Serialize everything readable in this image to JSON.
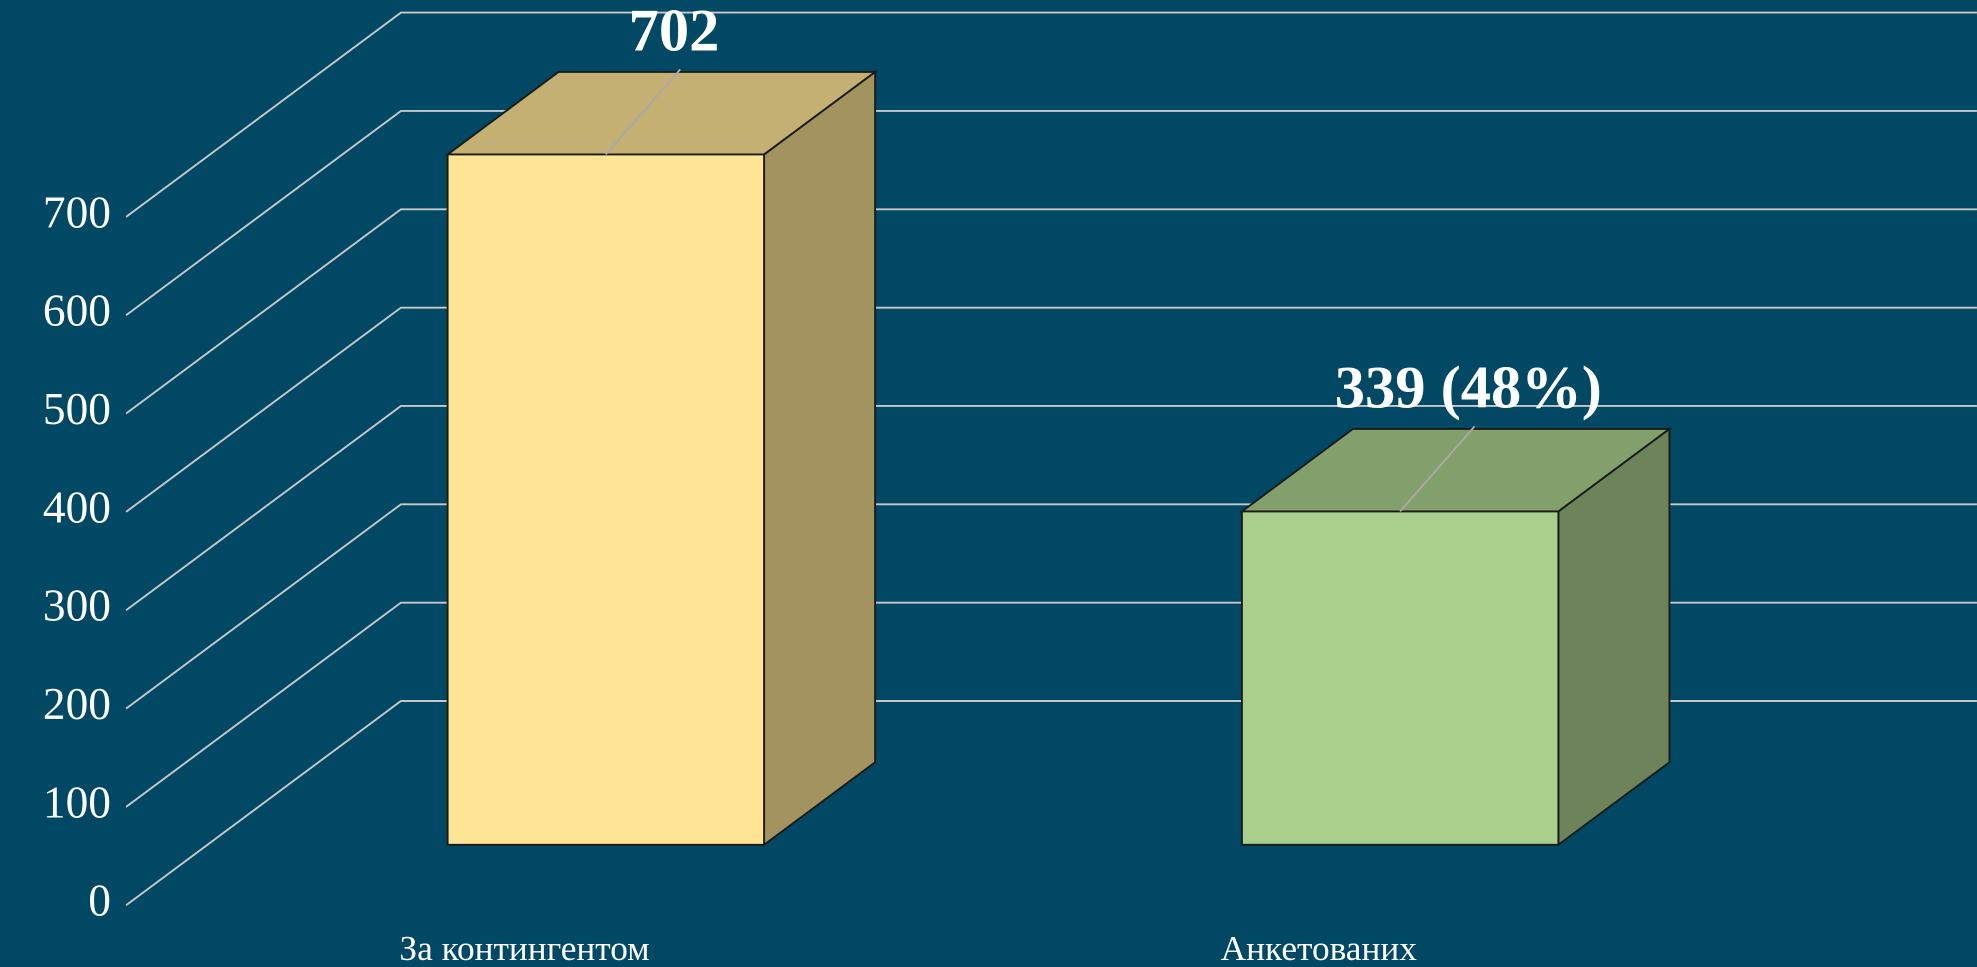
{
  "chart_data": {
    "type": "bar3d",
    "categories": [
      "За контингентом",
      "Анкетованих"
    ],
    "values": [
      702,
      339
    ],
    "value_labels": [
      "702",
      "339 (48%)"
    ],
    "colors": [
      "#fee595",
      "#aacf8c"
    ],
    "ylim": [
      0,
      700
    ],
    "yticks": [
      0,
      100,
      200,
      300,
      400,
      500,
      600,
      700
    ],
    "grid": true
  }
}
